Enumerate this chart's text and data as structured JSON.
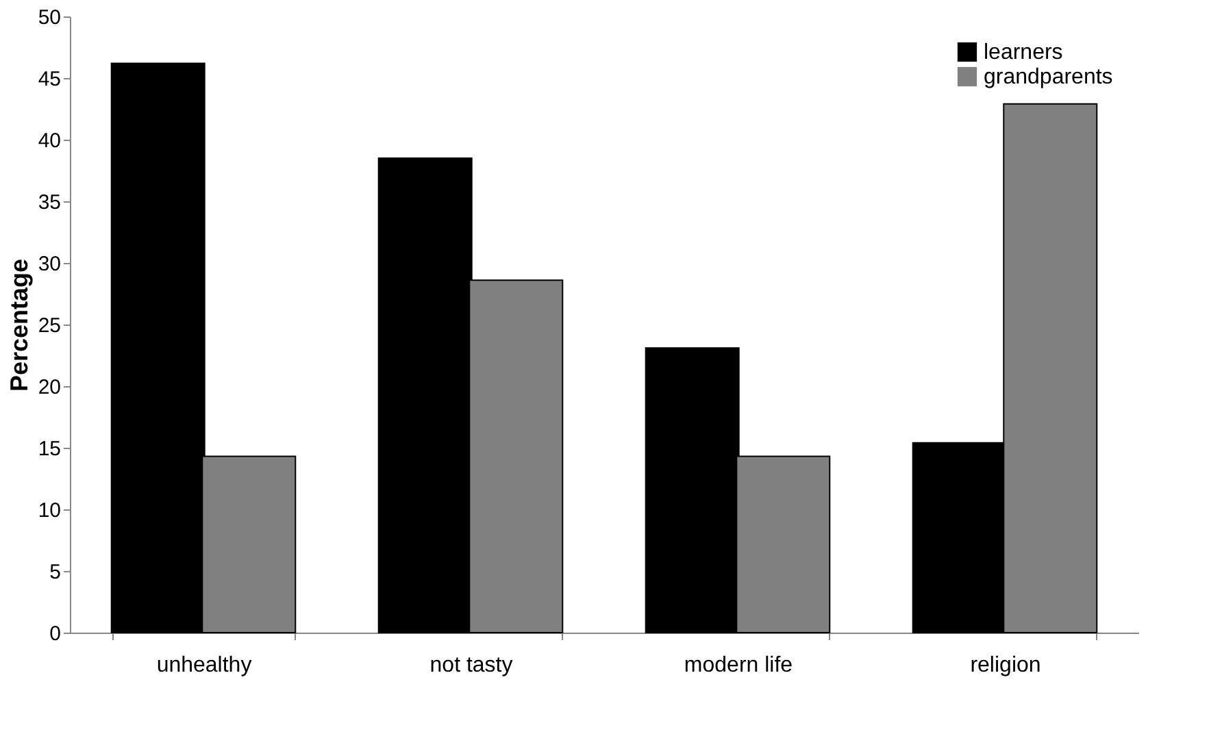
{
  "chart_data": {
    "type": "bar",
    "ylabel": "Percentage",
    "categories": [
      "unhealthy",
      "not tasty",
      "modern life",
      "religion"
    ],
    "series": [
      {
        "name": "learners",
        "color": "#000000",
        "values": [
          46.2,
          38.5,
          23.1,
          15.4
        ]
      },
      {
        "name": "grandparents",
        "color": "#808080",
        "values": [
          14.3,
          28.6,
          14.3,
          42.9
        ]
      }
    ],
    "ylim": [
      0,
      50
    ],
    "yticks": [
      0,
      5,
      10,
      15,
      20,
      25,
      30,
      35,
      40,
      45,
      50
    ],
    "grid": false,
    "legend": "top right"
  }
}
